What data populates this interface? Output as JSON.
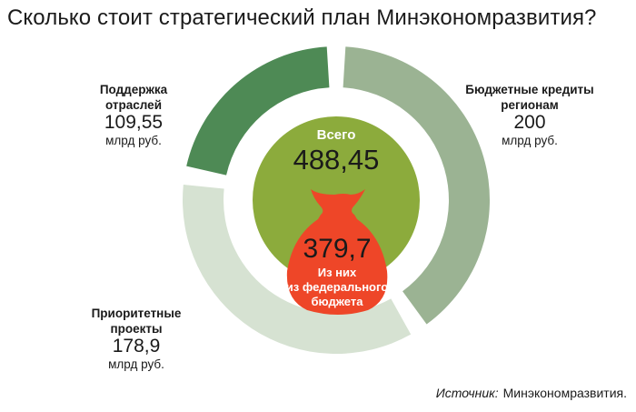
{
  "title": "Сколько стоит стратегический план Минэкономразвития?",
  "chart_data": {
    "type": "pie",
    "style": "donut",
    "categories": [
      "Бюджетные кредиты регионам",
      "Приоритетные проекты",
      "Поддержка отраслей"
    ],
    "values": [
      200,
      178.9,
      109.55
    ],
    "value_labels": [
      "200",
      "178,9",
      "109,55"
    ],
    "unit": "млрд руб.",
    "colors": [
      "#9bb393",
      "#d6e2d2",
      "#4e8a55"
    ],
    "center": {
      "total_label": "Всего",
      "total_value": 488.45,
      "total_text": "488,45",
      "center_color": "#8cab3c",
      "federal_value": 379.7,
      "federal_text": "379,7",
      "federal_line1": "Из них",
      "federal_line2": "из федерального",
      "federal_line3": "бюджета",
      "bag_color": "#ee4628"
    }
  },
  "labels": {
    "support": {
      "name_line1": "Поддержка",
      "name_line2": "отраслей",
      "value": "109,55",
      "unit": "млрд руб."
    },
    "budget": {
      "name_line1": "Бюджетные кредиты",
      "name_line2": "регионам",
      "value": "200",
      "unit": "млрд руб."
    },
    "priority": {
      "name_line1": "Приоритетные",
      "name_line2": "проекты",
      "value": "178,9",
      "unit": "млрд руб."
    }
  },
  "source": {
    "label": "Источник:",
    "value": "Минэкономразвития."
  }
}
